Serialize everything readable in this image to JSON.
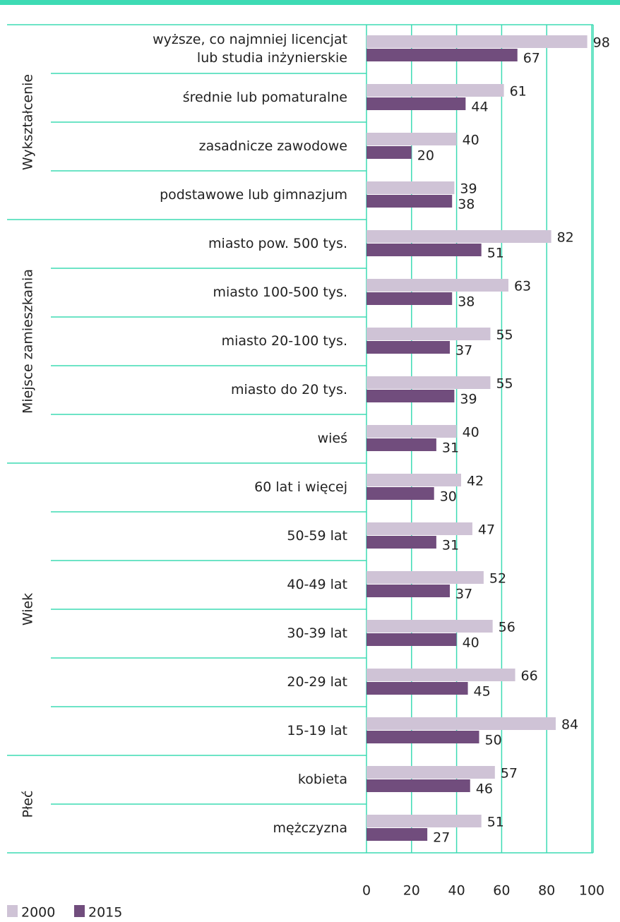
{
  "chart_data": {
    "type": "bar",
    "orientation": "horizontal",
    "groups": [
      {
        "name": "Wykształcenie",
        "categories": [
          [
            "wyższe, co najmniej licencjat",
            "lub studia inżynierskie"
          ],
          [
            "średnie lub pomaturalne"
          ],
          [
            "zasadnicze zawodowe"
          ],
          [
            "podstawowe lub gimnazjum"
          ]
        ]
      },
      {
        "name": "Miejsce zamieszkania",
        "categories": [
          [
            "miasto pow. 500 tys."
          ],
          [
            "miasto 100-500 tys."
          ],
          [
            "miasto 20-100 tys."
          ],
          [
            "miasto do 20 tys."
          ],
          [
            "wieś"
          ]
        ]
      },
      {
        "name": "Wiek",
        "categories": [
          [
            "60 lat i więcej"
          ],
          [
            "50-59 lat"
          ],
          [
            "40-49 lat"
          ],
          [
            "30-39 lat"
          ],
          [
            "20-29 lat"
          ],
          [
            "15-19 lat"
          ]
        ]
      },
      {
        "name": "Płeć",
        "categories": [
          [
            "kobieta"
          ],
          [
            "mężczyzna"
          ]
        ]
      }
    ],
    "series": [
      {
        "name": "2000",
        "color": "#cfc3d6",
        "values": [
          98,
          61,
          40,
          39,
          82,
          63,
          55,
          55,
          40,
          42,
          47,
          52,
          56,
          66,
          84,
          57,
          51
        ]
      },
      {
        "name": "2015",
        "color": "#714d7d",
        "values": [
          67,
          44,
          20,
          38,
          51,
          38,
          37,
          39,
          31,
          30,
          31,
          37,
          40,
          45,
          50,
          46,
          27
        ]
      }
    ],
    "xlim": [
      0,
      100
    ],
    "xticks": [
      0,
      20,
      40,
      60,
      80,
      100
    ],
    "grid": true,
    "legend": "bottom-left",
    "accent_color": "#3ddbb4"
  }
}
